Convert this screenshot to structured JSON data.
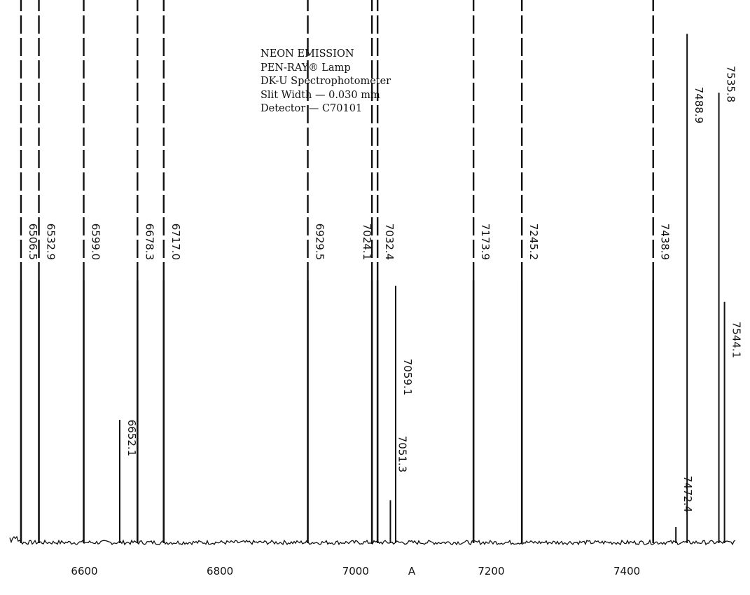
{
  "annotation": [
    "NEON EMISSION",
    "PEN-RAY® Lamp",
    "DK-U Spectrophotometer",
    "Slit Width — 0.030 mm",
    "Detector — C70101"
  ],
  "chart_data": {
    "type": "line",
    "title": "",
    "xlabel": "A",
    "ylabel": "",
    "xlim": [
      6490,
      7560
    ],
    "ylim": [
      0,
      1
    ],
    "grid": false,
    "x_ticks": [
      6600,
      6800,
      7000,
      7200,
      7400
    ],
    "peaks": [
      {
        "wavelength": 6506.5,
        "label": "6506.5",
        "off_scale": true
      },
      {
        "wavelength": 6532.9,
        "label": "6532.9",
        "off_scale": true
      },
      {
        "wavelength": 6599.0,
        "label": "6599.0",
        "off_scale": true
      },
      {
        "wavelength": 6652.1,
        "label": "6652.1",
        "off_scale": false,
        "intensity": 0.23
      },
      {
        "wavelength": 6678.3,
        "label": "6678.3",
        "off_scale": true
      },
      {
        "wavelength": 6717.0,
        "label": "6717.0",
        "off_scale": true
      },
      {
        "wavelength": 6929.5,
        "label": "6929.5",
        "off_scale": true
      },
      {
        "wavelength": 7024.1,
        "label": "7024.1",
        "off_scale": true
      },
      {
        "wavelength": 7032.4,
        "label": "7032.4",
        "off_scale": true
      },
      {
        "wavelength": 7051.3,
        "label": "7051.3",
        "off_scale": false,
        "intensity": 0.08
      },
      {
        "wavelength": 7059.1,
        "label": "7059.1",
        "off_scale": false,
        "intensity": 0.48
      },
      {
        "wavelength": 7173.9,
        "label": "7173.9",
        "off_scale": true
      },
      {
        "wavelength": 7245.2,
        "label": "7245.2",
        "off_scale": true
      },
      {
        "wavelength": 7438.9,
        "label": "7438.9",
        "off_scale": true
      },
      {
        "wavelength": 7472.4,
        "label": "7472.4",
        "off_scale": false,
        "intensity": 0.03
      },
      {
        "wavelength": 7488.9,
        "label": "7488.9",
        "off_scale": false,
        "intensity": 0.95
      },
      {
        "wavelength": 7535.8,
        "label": "7535.8",
        "off_scale": false,
        "intensity": 0.84
      },
      {
        "wavelength": 7544.1,
        "label": "7544.1",
        "off_scale": false,
        "intensity": 0.45
      }
    ]
  }
}
